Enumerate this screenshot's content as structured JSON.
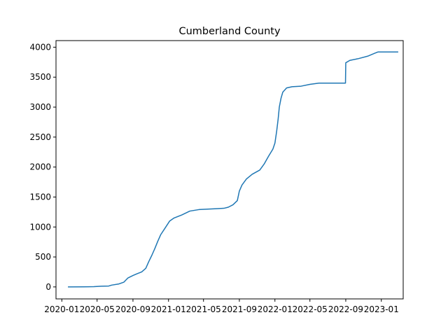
{
  "chart_data": {
    "type": "line",
    "title": "Cumberland County",
    "xlabel": "",
    "ylabel": "",
    "x_axis_type": "date",
    "xlim": [
      "2019-12-12",
      "2023-03-17"
    ],
    "ylim": [
      -200,
      4110
    ],
    "x_ticks": [
      {
        "date": "2020-01-01",
        "label": "2020-01"
      },
      {
        "date": "2020-05-01",
        "label": "2020-05"
      },
      {
        "date": "2020-09-01",
        "label": "2020-09"
      },
      {
        "date": "2021-01-01",
        "label": "2021-01"
      },
      {
        "date": "2021-05-01",
        "label": "2021-05"
      },
      {
        "date": "2021-09-01",
        "label": "2021-09"
      },
      {
        "date": "2022-01-01",
        "label": "2022-01"
      },
      {
        "date": "2022-05-01",
        "label": "2022-05"
      },
      {
        "date": "2022-09-01",
        "label": "2022-09"
      },
      {
        "date": "2023-01-01",
        "label": "2023-01"
      }
    ],
    "y_ticks": [
      0,
      500,
      1000,
      1500,
      2000,
      2500,
      3000,
      3500,
      4000
    ],
    "grid": false,
    "series": [
      {
        "color": "#1f77b4",
        "points": [
          [
            "2020-01-22",
            0
          ],
          [
            "2020-03-15",
            1
          ],
          [
            "2020-04-20",
            5
          ],
          [
            "2020-05-15",
            12
          ],
          [
            "2020-06-10",
            15
          ],
          [
            "2020-06-20",
            30
          ],
          [
            "2020-07-15",
            50
          ],
          [
            "2020-08-01",
            80
          ],
          [
            "2020-08-15",
            150
          ],
          [
            "2020-09-01",
            190
          ],
          [
            "2020-09-15",
            220
          ],
          [
            "2020-10-01",
            250
          ],
          [
            "2020-10-15",
            310
          ],
          [
            "2020-10-25",
            420
          ],
          [
            "2020-11-05",
            530
          ],
          [
            "2020-11-15",
            640
          ],
          [
            "2020-11-25",
            760
          ],
          [
            "2020-12-05",
            870
          ],
          [
            "2020-12-20",
            980
          ],
          [
            "2021-01-05",
            1100
          ],
          [
            "2021-01-20",
            1150
          ],
          [
            "2021-02-15",
            1200
          ],
          [
            "2021-03-15",
            1265
          ],
          [
            "2021-04-15",
            1290
          ],
          [
            "2021-05-15",
            1298
          ],
          [
            "2021-06-15",
            1305
          ],
          [
            "2021-07-10",
            1312
          ],
          [
            "2021-07-25",
            1330
          ],
          [
            "2021-08-10",
            1370
          ],
          [
            "2021-08-25",
            1440
          ],
          [
            "2021-09-01",
            1600
          ],
          [
            "2021-09-10",
            1700
          ],
          [
            "2021-09-25",
            1800
          ],
          [
            "2021-10-15",
            1880
          ],
          [
            "2021-11-10",
            1950
          ],
          [
            "2021-11-25",
            2050
          ],
          [
            "2021-12-10",
            2180
          ],
          [
            "2021-12-25",
            2300
          ],
          [
            "2022-01-01",
            2400
          ],
          [
            "2022-01-07",
            2600
          ],
          [
            "2022-01-12",
            2800
          ],
          [
            "2022-01-16",
            3000
          ],
          [
            "2022-01-22",
            3150
          ],
          [
            "2022-01-28",
            3250
          ],
          [
            "2022-02-10",
            3320
          ],
          [
            "2022-03-01",
            3340
          ],
          [
            "2022-04-01",
            3350
          ],
          [
            "2022-05-01",
            3380
          ],
          [
            "2022-06-01",
            3400
          ],
          [
            "2022-08-31",
            3400
          ],
          [
            "2022-09-01",
            3740
          ],
          [
            "2022-09-15",
            3780
          ],
          [
            "2022-10-15",
            3810
          ],
          [
            "2022-11-15",
            3850
          ],
          [
            "2022-12-10",
            3900
          ],
          [
            "2022-12-20",
            3920
          ],
          [
            "2023-02-28",
            3920
          ]
        ]
      }
    ]
  }
}
